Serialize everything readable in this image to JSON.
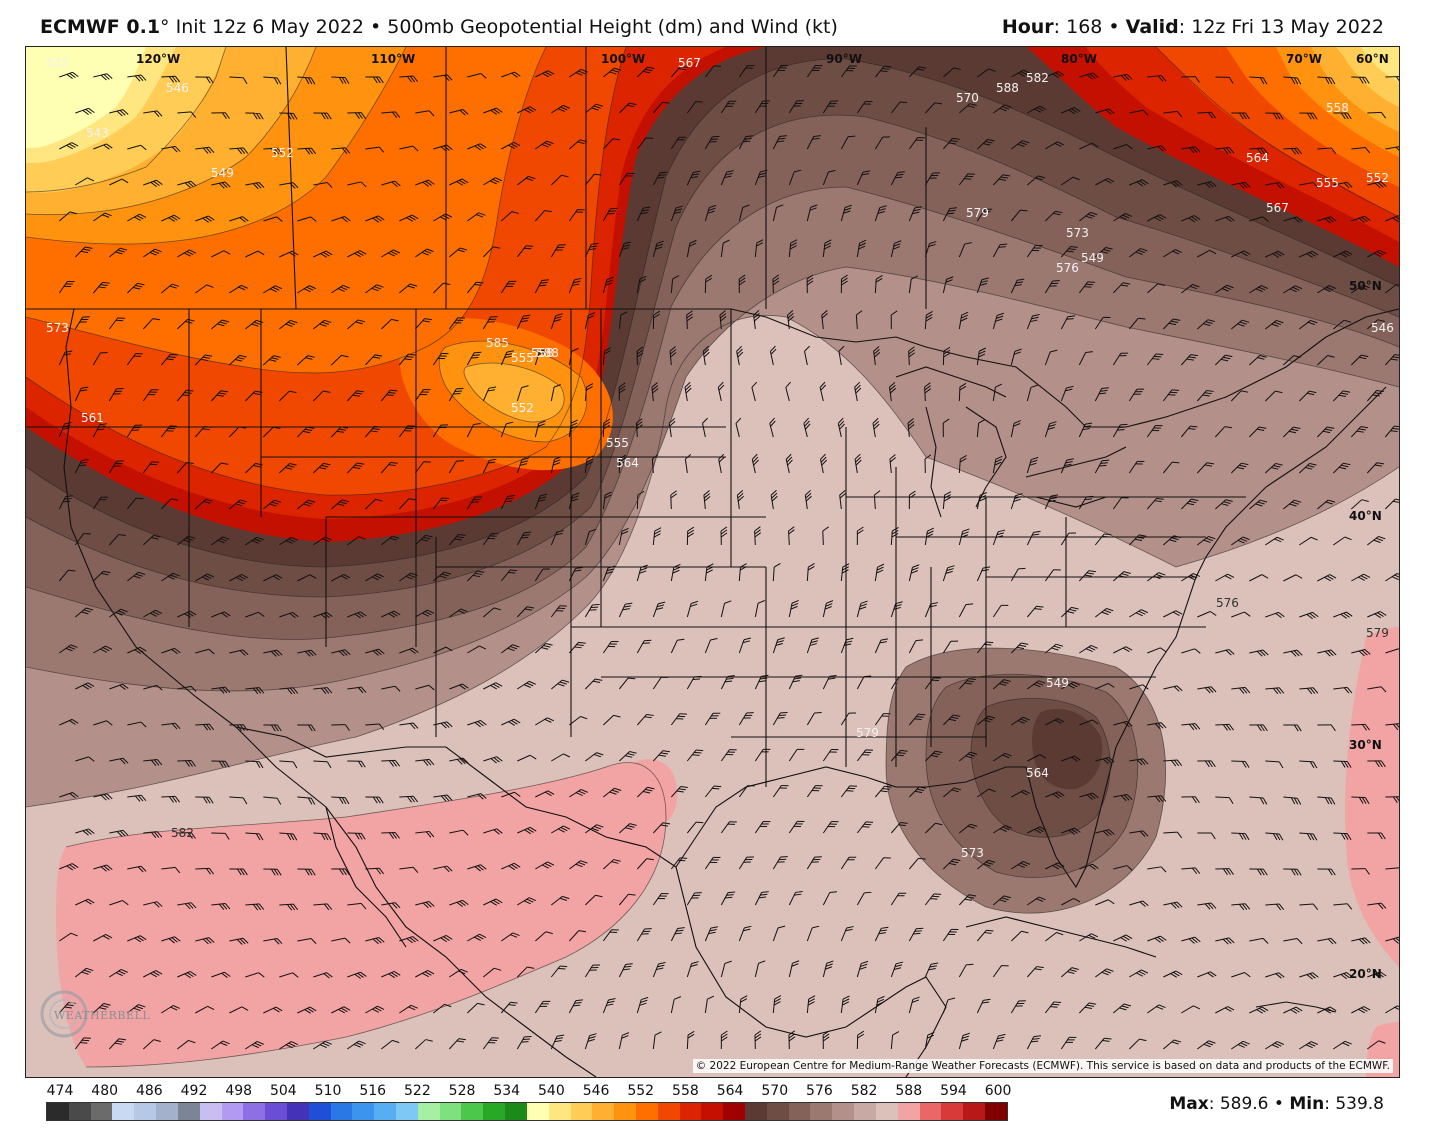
{
  "header": {
    "model": "ECMWF 0.1",
    "degree": "°",
    "init": " Init 12z 6 May 2022 • 500mb Geopotential Height (dm) and Wind (kt)",
    "hour_label": "Hour",
    "hour_value": ": 168 • ",
    "valid_label": "Valid",
    "valid_value": ": 12z Fri 13 May 2022"
  },
  "map": {
    "lon_labels": [
      "120°W",
      "110°W",
      "100°W",
      "90°W",
      "80°W",
      "70°W",
      "60°N"
    ],
    "lat_labels": [
      "50°N",
      "40°N",
      "30°N",
      "20°N"
    ],
    "contour_labels": [
      "543",
      "543",
      "546",
      "549",
      "552",
      "555",
      "558",
      "561",
      "564",
      "567",
      "570",
      "573",
      "576",
      "579",
      "582",
      "585",
      "588",
      "552",
      "555",
      "549",
      "564",
      "573",
      "576",
      "579",
      "582",
      "588",
      "564",
      "567",
      "555",
      "558",
      "552",
      "546",
      "549",
      "573",
      "579"
    ],
    "credit": "© 2022 European Centre for Medium-Range Weather Forecasts (ECMWF). This service is based on data and products of the ECMWF.",
    "logo_text": "WEATHERBELL"
  },
  "legend": {
    "labels": [
      "474",
      "480",
      "486",
      "492",
      "498",
      "504",
      "510",
      "516",
      "522",
      "528",
      "534",
      "540",
      "546",
      "552",
      "558",
      "564",
      "570",
      "576",
      "582",
      "588",
      "594",
      "600"
    ],
    "colors": [
      "#2b2b2b",
      "#4a4a4a",
      "#6b6b6b",
      "#c9d9f3",
      "#b7c8e6",
      "#a3b1cc",
      "#7b8596",
      "#c8bff0",
      "#b29af2",
      "#8f6fe6",
      "#6a4fd6",
      "#4433b8",
      "#1f4fd8",
      "#2a78e6",
      "#3d94ee",
      "#58aef2",
      "#7dc8f4",
      "#a6f0a6",
      "#7ee07e",
      "#4cc74c",
      "#27a827",
      "#1a8a1a",
      "#ffffb3",
      "#ffe680",
      "#ffcc55",
      "#ffb030",
      "#ff9310",
      "#ff6f00",
      "#f04800",
      "#dc2400",
      "#c41000",
      "#a00000",
      "#5a3a33",
      "#6e4d45",
      "#84625a",
      "#9b7870",
      "#b39089",
      "#c8a9a3",
      "#dcc0ba",
      "#f2a3a3",
      "#e86868",
      "#d83a3a",
      "#b81818",
      "#800000"
    ],
    "max_label": "Max",
    "max_value": ": 589.6 • ",
    "min_label": "Min",
    "min_value": ": 539.8"
  },
  "colors": {
    "fill_543": "#ffffb3",
    "fill_546": "#ffe680",
    "fill_549": "#ffcc55",
    "fill_552": "#ffb030",
    "fill_555": "#ff9310",
    "fill_558": "#ff6f00",
    "fill_561": "#f04800",
    "fill_564": "#dc2400",
    "fill_567": "#c41000",
    "fill_570": "#5a3a33",
    "fill_573": "#6e4d45",
    "fill_576": "#84625a",
    "fill_579": "#9b7870",
    "fill_582": "#b39089",
    "fill_585": "#dcc0ba",
    "fill_588": "#f2a3a3"
  }
}
